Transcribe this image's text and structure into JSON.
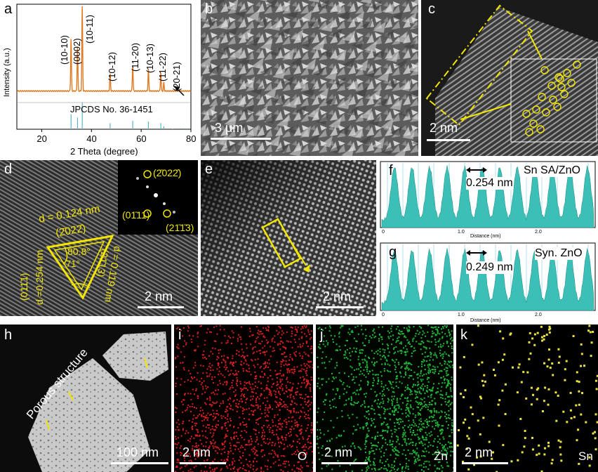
{
  "panel_a": {
    "letter": "a",
    "ylabel": "Intensity (a.u.)",
    "xlabel": "2 Theta (degree)",
    "xticks": [
      "20",
      "40",
      "60",
      "80"
    ],
    "reference_label": "JPCDS No. 36-1451",
    "peak_labels": [
      "(10-10)",
      "(0002)",
      "(10-11)",
      "(10-12)",
      "(11-20)",
      "(10-13)",
      "(11-22)",
      "(20-21)"
    ],
    "colors": {
      "pattern": "#e07b24",
      "reference": "#5fb3c8"
    }
  },
  "chart_data": {
    "type": "line",
    "title": "",
    "xlabel": "2 Theta (degree)",
    "ylabel": "Intensity (a.u.)",
    "xlim": [
      10,
      80
    ],
    "peaks": [
      {
        "label": "(10-10)",
        "x": 31.8,
        "y": 0.62
      },
      {
        "label": "(0002)",
        "x": 34.4,
        "y": 0.52
      },
      {
        "label": "(10-11)",
        "x": 36.3,
        "y": 1.0
      },
      {
        "label": "(10-12)",
        "x": 47.5,
        "y": 0.2
      },
      {
        "label": "(11-20)",
        "x": 56.6,
        "y": 0.3
      },
      {
        "label": "(10-13)",
        "x": 62.9,
        "y": 0.26
      },
      {
        "label": "(11-22)",
        "x": 67.9,
        "y": 0.22
      },
      {
        "label": "(20-21)",
        "x": 69.1,
        "y": 0.1
      }
    ],
    "reference_sticks": [
      {
        "x": 31.8,
        "y": 0.57
      },
      {
        "x": 34.4,
        "y": 0.44
      },
      {
        "x": 36.3,
        "y": 1.0
      },
      {
        "x": 47.5,
        "y": 0.23
      },
      {
        "x": 56.6,
        "y": 0.32
      },
      {
        "x": 62.9,
        "y": 0.29
      },
      {
        "x": 66.4,
        "y": 0.04
      },
      {
        "x": 67.9,
        "y": 0.23
      },
      {
        "x": 69.1,
        "y": 0.11
      },
      {
        "x": 72.6,
        "y": 0.02
      },
      {
        "x": 77.0,
        "y": 0.04
      }
    ]
  },
  "panel_b": {
    "letter": "b",
    "scale": "3 μm"
  },
  "panel_c": {
    "letter": "c",
    "scale": "2 nm"
  },
  "panel_d": {
    "letter": "d",
    "scale": "2 nm",
    "fft_labels": [
      "(2̄022̄)",
      "(01̄11)",
      "(21̄1̄3)"
    ],
    "d1": "d = 0.124 nm",
    "plane1": "(2̄022̄)",
    "angle1": "80.8°",
    "angle2": "71°",
    "d2": "d =0.254 nm",
    "plane2": "(011̄1)",
    "d3": "d = 0.119 nm",
    "plane3": "(21̄13)"
  },
  "panel_e": {
    "letter": "e",
    "scale": "2 nm"
  },
  "panel_f": {
    "letter": "f",
    "label": "Sn SA/ZnO",
    "spacing": "0.254 nm",
    "xlabel": "Distance (nm)",
    "xticks": [
      "0",
      "1.0",
      "2.0"
    ]
  },
  "panel_g": {
    "letter": "g",
    "label": "Syn. ZnO",
    "spacing": "0.249 nm",
    "xlabel": "Distance (nm)",
    "xticks": [
      "0",
      "1.0",
      "2.0"
    ]
  },
  "panel_h": {
    "letter": "h",
    "annotation": "Porous structure",
    "scale": "100 nm"
  },
  "panel_i": {
    "letter": "i",
    "scale": "2 nm",
    "element": "O"
  },
  "panel_j": {
    "letter": "j",
    "scale": "2 nm",
    "element": "Zn"
  },
  "panel_k": {
    "letter": "k",
    "scale": "2 nm",
    "element": "Sn"
  }
}
